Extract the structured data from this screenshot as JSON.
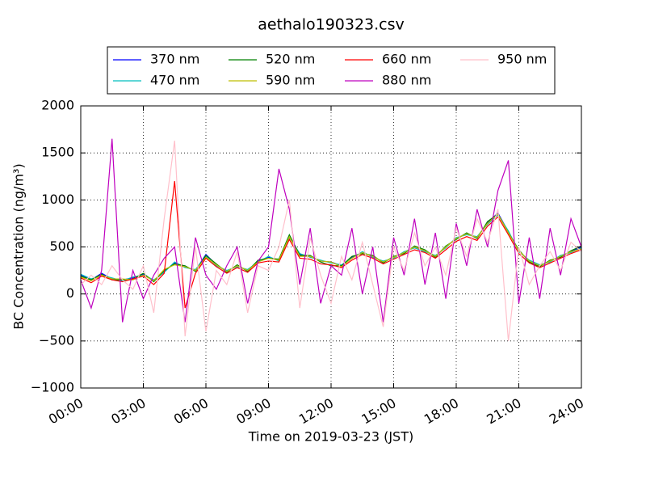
{
  "chart_data": {
    "type": "line",
    "title": "aethalo190323.csv",
    "x_label": "Time on 2019-03-23 (JST)",
    "y_label": "BC Concentration (ng/m³)",
    "xlim": [
      0,
      24
    ],
    "ylim": [
      -1000,
      2000
    ],
    "xticks": [
      {
        "value": 0,
        "label": "00:00"
      },
      {
        "value": 3,
        "label": "03:00"
      },
      {
        "value": 6,
        "label": "06:00"
      },
      {
        "value": 9,
        "label": "09:00"
      },
      {
        "value": 12,
        "label": "12:00"
      },
      {
        "value": 15,
        "label": "15:00"
      },
      {
        "value": 18,
        "label": "18:00"
      },
      {
        "value": 21,
        "label": "21:00"
      },
      {
        "value": 24,
        "label": "24:00"
      }
    ],
    "yticks": [
      {
        "value": -1000,
        "label": "−1000"
      },
      {
        "value": -500,
        "label": "−500"
      },
      0,
      500,
      1000,
      1500,
      2000
    ],
    "grid": true,
    "legend": "top",
    "x": [
      0,
      0.5,
      1,
      1.5,
      2,
      2.5,
      3,
      3.5,
      4,
      4.5,
      5,
      5.5,
      6,
      6.5,
      7,
      7.5,
      8,
      8.5,
      9,
      9.5,
      10,
      10.5,
      11,
      11.5,
      12,
      12.5,
      13,
      13.5,
      14,
      14.5,
      15,
      15.5,
      16,
      16.5,
      17,
      17.5,
      18,
      18.5,
      19,
      19.5,
      20,
      20.5,
      21,
      21.5,
      22,
      22.5,
      23,
      23.5,
      24
    ],
    "series": [
      {
        "name": "370 nm",
        "color": "#0000ff",
        "values": [
          200,
          150,
          220,
          160,
          150,
          170,
          210,
          140,
          240,
          330,
          290,
          250,
          420,
          310,
          240,
          300,
          250,
          350,
          390,
          360,
          620,
          420,
          400,
          350,
          340,
          300,
          390,
          440,
          400,
          340,
          390,
          440,
          500,
          460,
          400,
          500,
          590,
          640,
          600,
          760,
          860,
          660,
          460,
          350,
          300,
          350,
          400,
          450,
          500
        ]
      },
      {
        "name": "470 nm",
        "color": "#00bfbf",
        "values": [
          210,
          160,
          200,
          170,
          140,
          180,
          200,
          150,
          230,
          340,
          280,
          260,
          400,
          300,
          250,
          290,
          260,
          340,
          400,
          350,
          600,
          430,
          390,
          360,
          330,
          310,
          380,
          450,
          390,
          350,
          380,
          450,
          490,
          450,
          410,
          490,
          600,
          630,
          610,
          740,
          840,
          670,
          450,
          360,
          310,
          340,
          410,
          440,
          490
        ]
      },
      {
        "name": "520 nm",
        "color": "#008000",
        "values": [
          190,
          150,
          210,
          150,
          150,
          160,
          220,
          130,
          250,
          320,
          300,
          240,
          410,
          320,
          230,
          310,
          240,
          360,
          380,
          370,
          630,
          410,
          410,
          340,
          300,
          300,
          400,
          430,
          410,
          330,
          400,
          430,
          510,
          470,
          390,
          510,
          580,
          650,
          590,
          770,
          850,
          650,
          470,
          340,
          290,
          360,
          390,
          460,
          510
        ]
      },
      {
        "name": "590 nm",
        "color": "#bfbf00",
        "values": [
          180,
          140,
          200,
          160,
          160,
          150,
          200,
          140,
          260,
          310,
          290,
          250,
          390,
          310,
          240,
          300,
          250,
          340,
          380,
          360,
          610,
          400,
          400,
          350,
          340,
          290,
          380,
          440,
          400,
          340,
          390,
          440,
          500,
          460,
          400,
          500,
          590,
          640,
          600,
          750,
          850,
          650,
          460,
          350,
          300,
          350,
          400,
          450,
          480
        ]
      },
      {
        "name": "660 nm",
        "color": "#ff0000",
        "values": [
          170,
          120,
          190,
          150,
          130,
          160,
          190,
          100,
          220,
          1200,
          -150,
          220,
          380,
          290,
          220,
          280,
          230,
          330,
          350,
          340,
          580,
          380,
          370,
          320,
          310,
          280,
          360,
          420,
          380,
          320,
          370,
          420,
          470,
          440,
          380,
          470,
          560,
          610,
          570,
          720,
          820,
          630,
          430,
          330,
          280,
          330,
          380,
          430,
          470
        ]
      },
      {
        "name": "880 nm",
        "color": "#bf00bf",
        "values": [
          150,
          -150,
          250,
          1650,
          -300,
          250,
          -50,
          200,
          380,
          500,
          -300,
          600,
          200,
          50,
          300,
          500,
          -100,
          350,
          500,
          1330,
          900,
          100,
          700,
          -100,
          300,
          200,
          700,
          0,
          500,
          -300,
          600,
          200,
          800,
          100,
          650,
          -50,
          750,
          300,
          900,
          500,
          1100,
          1420,
          -100,
          600,
          -50,
          700,
          200,
          800,
          500
        ]
      },
      {
        "name": "950 nm",
        "color": "#ffc0cb",
        "values": [
          100,
          200,
          100,
          300,
          150,
          50,
          300,
          -200,
          800,
          1630,
          -450,
          500,
          -400,
          250,
          100,
          450,
          -200,
          300,
          250,
          500,
          1000,
          -150,
          600,
          200,
          -100,
          400,
          150,
          550,
          100,
          -350,
          500,
          250,
          650,
          300,
          500,
          200,
          700,
          400,
          800,
          550,
          900,
          -500,
          500,
          100,
          300,
          450,
          250,
          550,
          450
        ]
      }
    ]
  }
}
